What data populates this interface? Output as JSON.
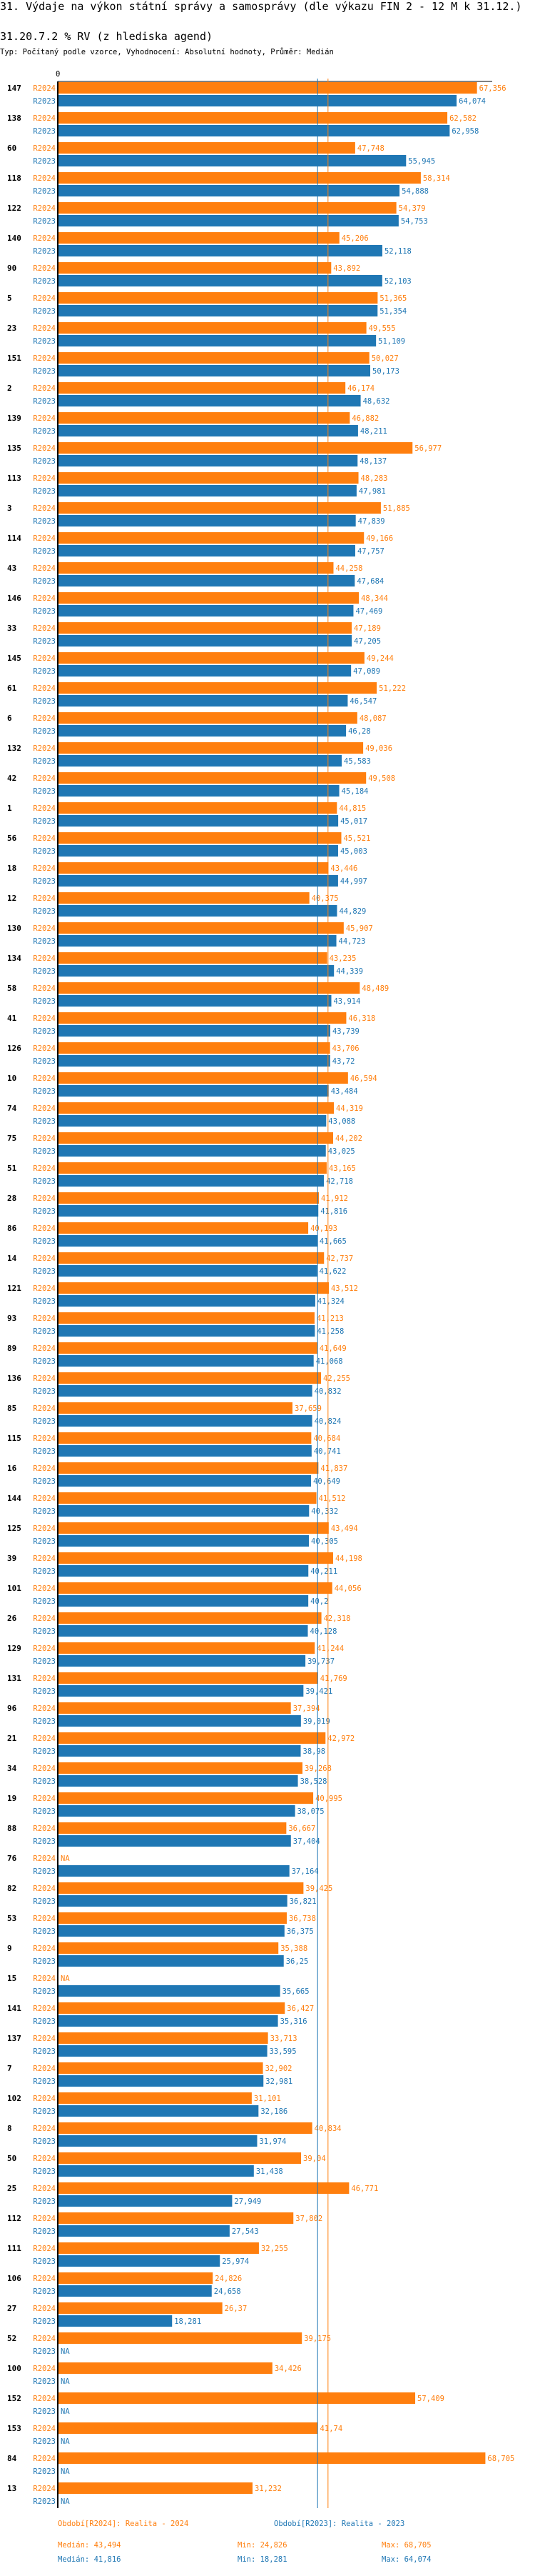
{
  "header": {
    "title": "31. Výdaje na výkon státní správy a samosprávy (dle výkazu FIN 2 - 12 M k 31.12.)",
    "subtitle": "31.20.7.2 % RV (z hlediska agend)",
    "type_line": "Typ: Počítaný podle vzorce, Vyhodnocení: Absolutní hodnoty, Průměr: Medián"
  },
  "chart_data": {
    "type": "bar",
    "orientation": "horizontal",
    "title": "31.20.7.2 % RV (z hlediska agend)",
    "x_tick_labels": [
      "0"
    ],
    "xlim": [
      0,
      68.705
    ],
    "na_label": "NA",
    "categories": [
      "147",
      "138",
      "60",
      "118",
      "122",
      "140",
      "90",
      "5",
      "23",
      "151",
      "2",
      "139",
      "135",
      "113",
      "3",
      "114",
      "43",
      "146",
      "33",
      "145",
      "61",
      "6",
      "132",
      "42",
      "1",
      "56",
      "18",
      "12",
      "130",
      "134",
      "58",
      "41",
      "126",
      "10",
      "74",
      "75",
      "51",
      "28",
      "86",
      "14",
      "121",
      "93",
      "89",
      "136",
      "85",
      "115",
      "16",
      "144",
      "125",
      "39",
      "101",
      "26",
      "129",
      "131",
      "96",
      "21",
      "34",
      "19",
      "88",
      "76",
      "82",
      "53",
      "9",
      "15",
      "141",
      "137",
      "7",
      "102",
      "8",
      "50",
      "25",
      "112",
      "111",
      "106",
      "27",
      "52",
      "100",
      "152",
      "153",
      "84",
      "13"
    ],
    "series": [
      {
        "name": "R2024",
        "color": "#ff7f0e",
        "values": [
          67.356,
          62.582,
          47.748,
          58.314,
          54.379,
          45.206,
          43.892,
          51.365,
          49.555,
          50.027,
          46.174,
          46.882,
          56.977,
          48.283,
          51.885,
          49.166,
          44.258,
          48.344,
          47.189,
          49.244,
          51.222,
          48.087,
          49.036,
          49.508,
          44.815,
          45.521,
          43.446,
          40.375,
          45.907,
          43.235,
          48.489,
          46.318,
          43.706,
          46.594,
          44.319,
          44.202,
          43.165,
          41.912,
          40.193,
          42.737,
          43.512,
          41.213,
          41.649,
          42.255,
          37.659,
          40.684,
          41.837,
          41.512,
          43.494,
          44.198,
          44.056,
          42.318,
          41.244,
          41.769,
          37.394,
          42.972,
          39.268,
          40.995,
          36.667,
          null,
          39.425,
          36.738,
          35.388,
          null,
          36.427,
          33.713,
          32.902,
          31.101,
          40.834,
          39.04,
          46.771,
          37.802,
          32.255,
          24.826,
          26.37,
          39.175,
          34.426,
          57.409,
          41.74,
          68.705,
          31.232
        ]
      },
      {
        "name": "R2023",
        "color": "#1f77b4",
        "values": [
          64.074,
          62.958,
          55.945,
          54.888,
          54.753,
          52.118,
          52.103,
          51.354,
          51.109,
          50.173,
          48.632,
          48.211,
          48.137,
          47.981,
          47.839,
          47.757,
          47.684,
          47.469,
          47.205,
          47.089,
          46.547,
          46.28,
          45.583,
          45.184,
          45.017,
          45.003,
          44.997,
          44.829,
          44.723,
          44.339,
          43.914,
          43.739,
          43.72,
          43.484,
          43.088,
          43.025,
          42.718,
          41.816,
          41.665,
          41.622,
          41.324,
          41.258,
          41.068,
          40.832,
          40.824,
          40.741,
          40.649,
          40.332,
          40.305,
          40.211,
          40.2,
          40.128,
          39.737,
          39.421,
          39.019,
          38.98,
          38.528,
          38.075,
          37.404,
          37.164,
          36.821,
          36.375,
          36.25,
          35.665,
          35.316,
          33.595,
          32.981,
          32.186,
          31.974,
          31.438,
          27.949,
          27.543,
          25.974,
          24.658,
          18.281,
          null,
          null,
          null,
          null,
          null,
          null
        ]
      }
    ],
    "reference_lines": [
      {
        "series": "R2024",
        "stat": "median",
        "value": 43.494
      },
      {
        "series": "R2023",
        "stat": "median",
        "value": 41.816
      }
    ],
    "legend": [
      {
        "text": "Období[R2024]: Realita - 2024",
        "color": "#ff7f0e",
        "median": "Medián: 43,494",
        "min": "Min: 24,826",
        "max": "Max: 68,705"
      },
      {
        "text": "Období[R2023]: Realita - 2023",
        "color": "#1f77b4",
        "median": "Medián: 41,816",
        "min": "Min: 18,281",
        "max": "Max: 64,074"
      }
    ]
  }
}
